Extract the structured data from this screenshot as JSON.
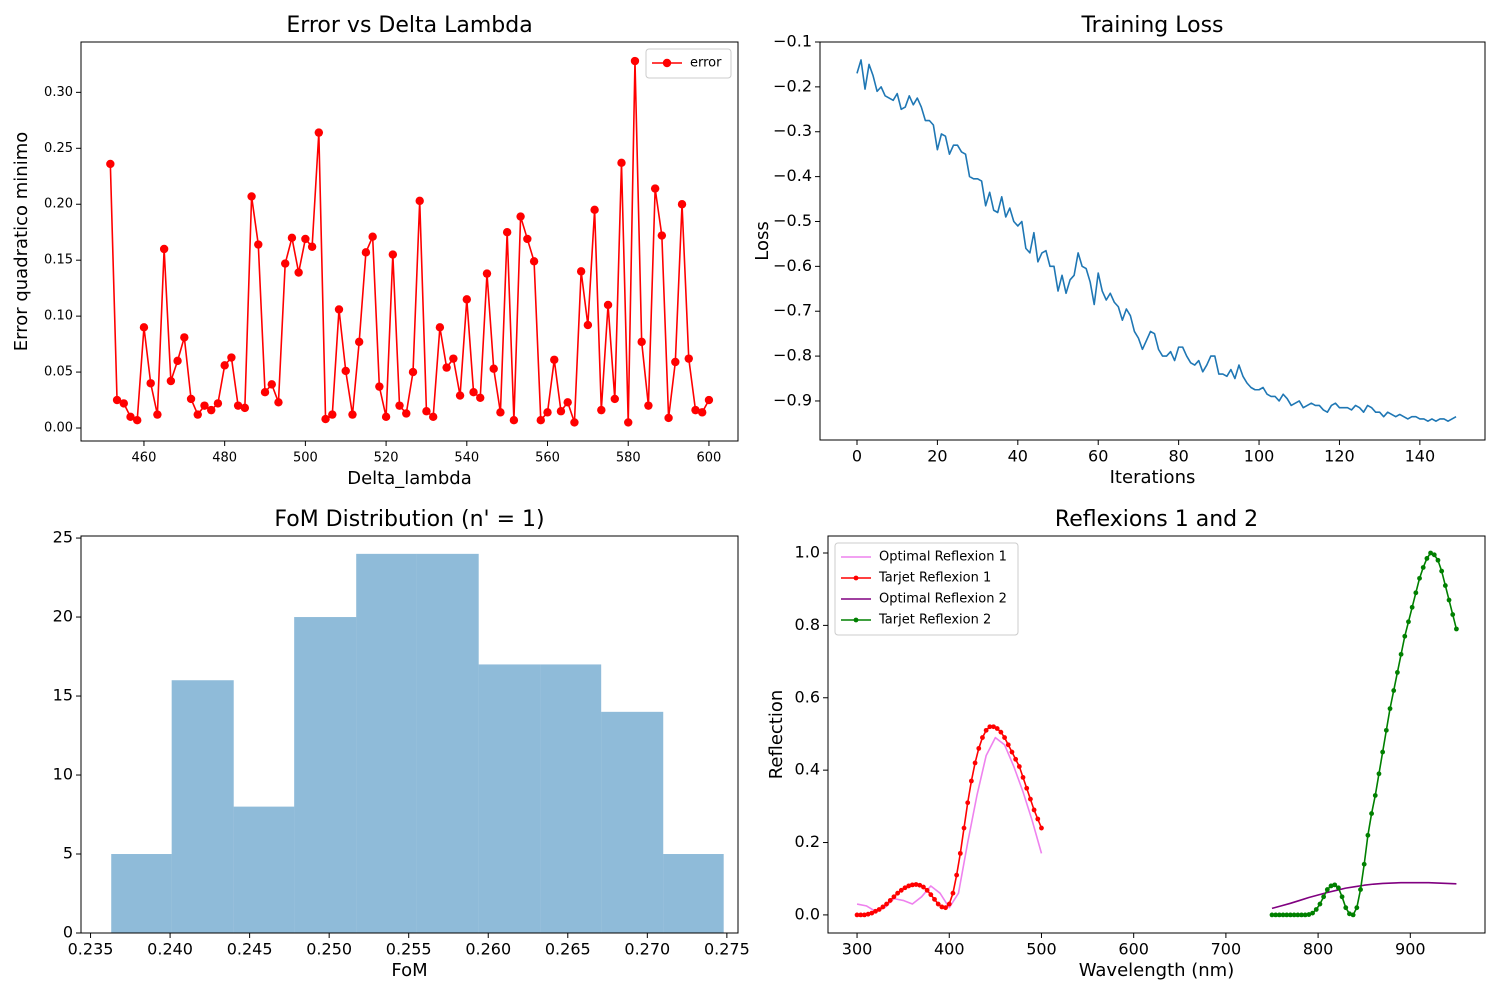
{
  "chart_data": [
    {
      "type": "line",
      "title": "Error vs Delta Lambda",
      "xlabel": "Delta_lambda",
      "ylabel": "Error quadratico minimo",
      "x": [
        451.67,
        453.33,
        455,
        456.67,
        458.33,
        460,
        461.67,
        463.33,
        465,
        466.67,
        468.33,
        470,
        471.67,
        473.33,
        475,
        476.67,
        478.33,
        480,
        481.67,
        483.33,
        485,
        486.67,
        488.33,
        490,
        491.67,
        493.33,
        495,
        496.67,
        498.33,
        500,
        501.67,
        503.33,
        505,
        506.67,
        508.33,
        510,
        511.67,
        513.33,
        515,
        516.67,
        518.33,
        520,
        521.67,
        523.33,
        525,
        526.67,
        528.33,
        530,
        531.67,
        533.33,
        535,
        536.67,
        538.33,
        540,
        541.67,
        543.33,
        545,
        546.67,
        548.33,
        550,
        551.67,
        553.33,
        555,
        556.67,
        558.33,
        560,
        561.67,
        563.33,
        565,
        566.67,
        568.33,
        570,
        571.67,
        573.33,
        575,
        576.67,
        578.33,
        580,
        581.67,
        583.33,
        585,
        586.67,
        588.33,
        590,
        591.67,
        593.33,
        595,
        596.67,
        598.33,
        600
      ],
      "series": [
        {
          "name": "error",
          "color": "#ff0000",
          "marker": true,
          "values": [
            0.236,
            0.025,
            0.022,
            0.01,
            0.007,
            0.09,
            0.04,
            0.012,
            0.16,
            0.042,
            0.06,
            0.081,
            0.026,
            0.012,
            0.02,
            0.016,
            0.022,
            0.056,
            0.063,
            0.02,
            0.018,
            0.207,
            0.164,
            0.032,
            0.039,
            0.023,
            0.147,
            0.17,
            0.139,
            0.169,
            0.162,
            0.264,
            0.008,
            0.012,
            0.106,
            0.051,
            0.012,
            0.077,
            0.157,
            0.171,
            0.037,
            0.01,
            0.155,
            0.02,
            0.013,
            0.05,
            0.203,
            0.015,
            0.01,
            0.09,
            0.054,
            0.062,
            0.029,
            0.115,
            0.032,
            0.027,
            0.138,
            0.053,
            0.014,
            0.175,
            0.007,
            0.189,
            0.169,
            0.149,
            0.007,
            0.014,
            0.061,
            0.015,
            0.023,
            0.005,
            0.14,
            0.092,
            0.195,
            0.016,
            0.11,
            0.026,
            0.237,
            0.005,
            0.328,
            0.077,
            0.02,
            0.214,
            0.172,
            0.009,
            0.059,
            0.2,
            0.062,
            0.016,
            0.014,
            0.025
          ]
        }
      ],
      "xlim": [
        444.4,
        607.2
      ],
      "ylim": [
        -0.0116,
        0.345
      ],
      "xticks": [
        460,
        480,
        500,
        520,
        540,
        560,
        580,
        600
      ],
      "yticks": [
        {
          "value": 0,
          "label": "0.00"
        },
        {
          "value": 0.05,
          "label": "0.05"
        },
        {
          "value": 0.1,
          "label": "0.10"
        },
        {
          "value": 0.15,
          "label": "0.15"
        },
        {
          "value": 0.2,
          "label": "0.20"
        },
        {
          "value": 0.25,
          "label": "0.25"
        },
        {
          "value": 0.3,
          "label": "0.30"
        }
      ],
      "grid": false,
      "legend": "upper right"
    },
    {
      "type": "line",
      "title": "Training Loss",
      "xlabel": "Iterations",
      "ylabel": "Loss",
      "color": "#1f77b4",
      "marker": false,
      "x": [
        0,
        1,
        2,
        3,
        4,
        5,
        6,
        7,
        8,
        9,
        10,
        11,
        12,
        13,
        14,
        15,
        16,
        17,
        18,
        19,
        20,
        21,
        22,
        23,
        24,
        25,
        26,
        27,
        28,
        29,
        30,
        31,
        32,
        33,
        34,
        35,
        36,
        37,
        38,
        39,
        40,
        41,
        42,
        43,
        44,
        45,
        46,
        47,
        48,
        49,
        50,
        51,
        52,
        53,
        54,
        55,
        56,
        57,
        58,
        59,
        60,
        61,
        62,
        63,
        64,
        65,
        66,
        67,
        68,
        69,
        70,
        71,
        72,
        73,
        74,
        75,
        76,
        77,
        78,
        79,
        80,
        81,
        82,
        83,
        84,
        85,
        86,
        87,
        88,
        89,
        90,
        91,
        92,
        93,
        94,
        95,
        96,
        97,
        98,
        99,
        100,
        101,
        102,
        103,
        104,
        105,
        106,
        107,
        108,
        109,
        110,
        111,
        112,
        113,
        114,
        115,
        116,
        117,
        118,
        119,
        120,
        121,
        122,
        123,
        124,
        125,
        126,
        127,
        128,
        129,
        130,
        131,
        132,
        133,
        134,
        135,
        136,
        137,
        138,
        139,
        140,
        141,
        142,
        143,
        144,
        145,
        146,
        147,
        148,
        149
      ],
      "values": [
        -0.17,
        -0.14,
        -0.205,
        -0.15,
        -0.175,
        -0.21,
        -0.2,
        -0.22,
        -0.225,
        -0.23,
        -0.215,
        -0.25,
        -0.245,
        -0.22,
        -0.24,
        -0.225,
        -0.245,
        -0.275,
        -0.275,
        -0.285,
        -0.34,
        -0.305,
        -0.31,
        -0.35,
        -0.33,
        -0.33,
        -0.345,
        -0.35,
        -0.4,
        -0.405,
        -0.405,
        -0.41,
        -0.465,
        -0.435,
        -0.475,
        -0.48,
        -0.445,
        -0.49,
        -0.47,
        -0.5,
        -0.51,
        -0.5,
        -0.56,
        -0.57,
        -0.525,
        -0.59,
        -0.57,
        -0.565,
        -0.6,
        -0.6,
        -0.655,
        -0.62,
        -0.66,
        -0.63,
        -0.62,
        -0.57,
        -0.6,
        -0.605,
        -0.635,
        -0.685,
        -0.615,
        -0.655,
        -0.675,
        -0.66,
        -0.68,
        -0.69,
        -0.72,
        -0.695,
        -0.71,
        -0.745,
        -0.76,
        -0.785,
        -0.765,
        -0.745,
        -0.75,
        -0.785,
        -0.8,
        -0.8,
        -0.79,
        -0.81,
        -0.78,
        -0.78,
        -0.8,
        -0.815,
        -0.82,
        -0.81,
        -0.835,
        -0.82,
        -0.8,
        -0.8,
        -0.84,
        -0.84,
        -0.845,
        -0.83,
        -0.85,
        -0.82,
        -0.845,
        -0.86,
        -0.87,
        -0.875,
        -0.875,
        -0.87,
        -0.885,
        -0.89,
        -0.89,
        -0.9,
        -0.885,
        -0.895,
        -0.91,
        -0.905,
        -0.9,
        -0.915,
        -0.91,
        -0.905,
        -0.91,
        -0.91,
        -0.92,
        -0.925,
        -0.91,
        -0.905,
        -0.915,
        -0.915,
        -0.915,
        -0.92,
        -0.91,
        -0.915,
        -0.925,
        -0.91,
        -0.915,
        -0.925,
        -0.925,
        -0.935,
        -0.925,
        -0.93,
        -0.935,
        -0.93,
        -0.935,
        -0.94,
        -0.935,
        -0.935,
        -0.94,
        -0.94,
        -0.945,
        -0.94,
        -0.945,
        -0.94,
        -0.94,
        -0.945,
        -0.94,
        -0.935
      ],
      "xlim": [
        -9.2,
        156.2
      ],
      "ylim": [
        -0.987,
        -0.1
      ],
      "xticks": [
        0,
        20,
        40,
        60,
        80,
        100,
        120,
        140
      ],
      "yticks": [
        {
          "value": -0.9,
          "label": "−0.9"
        },
        {
          "value": -0.8,
          "label": "−0.8"
        },
        {
          "value": -0.7,
          "label": "−0.7"
        },
        {
          "value": -0.6,
          "label": "−0.6"
        },
        {
          "value": -0.5,
          "label": "−0.5"
        },
        {
          "value": -0.4,
          "label": "−0.4"
        },
        {
          "value": -0.3,
          "label": "−0.3"
        },
        {
          "value": -0.2,
          "label": "−0.2"
        },
        {
          "value": -0.1,
          "label": "−0.1"
        }
      ],
      "grid": false
    },
    {
      "type": "histogram",
      "title": "FoM Distribution (n' = 1)",
      "xlabel": "FoM",
      "color": "#1f77b4",
      "alpha": 0.5,
      "bins": [
        0.2363,
        0.2401,
        0.244,
        0.2478,
        0.2517,
        0.2555,
        0.2594,
        0.2633,
        0.2671,
        0.271,
        0.2748
      ],
      "values": [
        5,
        16,
        8,
        20,
        24,
        24,
        17,
        17,
        14,
        5
      ],
      "xlim": [
        0.2344,
        0.2757
      ],
      "ylim": [
        0,
        25.13
      ],
      "xticks": [
        {
          "value": 0.235,
          "label": "0.235"
        },
        {
          "value": 0.24,
          "label": "0.240"
        },
        {
          "value": 0.245,
          "label": "0.245"
        },
        {
          "value": 0.25,
          "label": "0.250"
        },
        {
          "value": 0.255,
          "label": "0.255"
        },
        {
          "value": 0.26,
          "label": "0.260"
        },
        {
          "value": 0.265,
          "label": "0.265"
        },
        {
          "value": 0.27,
          "label": "0.270"
        },
        {
          "value": 0.275,
          "label": "0.275"
        }
      ],
      "yticks": [
        0,
        5,
        10,
        15,
        20,
        25
      ],
      "grid": false
    },
    {
      "type": "line",
      "title": "Reflexions 1 and 2",
      "xlabel": "Wavelength (nm)",
      "ylabel": "Reflection",
      "series": [
        {
          "name": "Optimal Reflexion 1",
          "color": "#ee82ee",
          "marker": false,
          "x": [
            300,
            310,
            320,
            330,
            340,
            350,
            360,
            370,
            380,
            390,
            400,
            410,
            420,
            430,
            440,
            450,
            460,
            470,
            480,
            490,
            500
          ],
          "values": [
            0.03,
            0.025,
            0.01,
            0.02,
            0.045,
            0.04,
            0.03,
            0.05,
            0.08,
            0.06,
            0.02,
            0.06,
            0.2,
            0.33,
            0.44,
            0.49,
            0.47,
            0.41,
            0.34,
            0.26,
            0.17
          ]
        },
        {
          "name": "Tarjet Reflexion 1",
          "color": "#ff0000",
          "marker": true,
          "x": [
            300,
            304,
            308,
            312,
            316,
            320,
            324,
            328,
            332,
            336,
            340,
            344,
            348,
            352,
            356,
            360,
            364,
            368,
            372,
            376,
            380,
            384,
            388,
            392,
            396,
            400,
            404,
            408,
            412,
            416,
            420,
            424,
            428,
            432,
            436,
            440,
            444,
            448,
            452,
            456,
            460,
            464,
            468,
            472,
            476,
            480,
            484,
            488,
            492,
            496,
            500
          ],
          "values": [
            0.0,
            0.0,
            0.0,
            0.002,
            0.005,
            0.01,
            0.015,
            0.022,
            0.03,
            0.04,
            0.05,
            0.06,
            0.068,
            0.075,
            0.08,
            0.083,
            0.084,
            0.082,
            0.077,
            0.068,
            0.056,
            0.043,
            0.03,
            0.022,
            0.02,
            0.03,
            0.06,
            0.11,
            0.17,
            0.24,
            0.31,
            0.37,
            0.42,
            0.46,
            0.49,
            0.51,
            0.52,
            0.52,
            0.515,
            0.505,
            0.49,
            0.47,
            0.45,
            0.43,
            0.41,
            0.38,
            0.35,
            0.32,
            0.29,
            0.265,
            0.24
          ]
        },
        {
          "name": "Optimal Reflexion 2",
          "color": "#800080",
          "marker": false,
          "x": [
            750,
            760,
            770,
            780,
            790,
            800,
            810,
            820,
            830,
            840,
            850,
            860,
            870,
            880,
            890,
            900,
            910,
            920,
            930,
            940,
            950
          ],
          "values": [
            0.018,
            0.025,
            0.032,
            0.04,
            0.048,
            0.055,
            0.062,
            0.068,
            0.074,
            0.078,
            0.082,
            0.085,
            0.087,
            0.088,
            0.089,
            0.089,
            0.089,
            0.089,
            0.088,
            0.087,
            0.086
          ]
        },
        {
          "name": "Tarjet Reflexion 2",
          "color": "#008000",
          "marker": true,
          "x": [
            750,
            754,
            758,
            762,
            766,
            770,
            774,
            778,
            782,
            786,
            790,
            794,
            798,
            802,
            806,
            810,
            814,
            818,
            822,
            826,
            830,
            834,
            838,
            842,
            846,
            850,
            854,
            858,
            862,
            866,
            870,
            874,
            878,
            882,
            886,
            890,
            894,
            898,
            902,
            906,
            910,
            914,
            918,
            922,
            926,
            930,
            934,
            938,
            942,
            946,
            950
          ],
          "values": [
            0,
            0,
            0,
            0,
            0,
            0,
            0,
            0,
            0,
            0,
            0.001,
            0.005,
            0.015,
            0.03,
            0.05,
            0.07,
            0.08,
            0.083,
            0.075,
            0.05,
            0.02,
            0.003,
            0.0,
            0.02,
            0.07,
            0.14,
            0.22,
            0.28,
            0.33,
            0.39,
            0.45,
            0.51,
            0.57,
            0.62,
            0.67,
            0.72,
            0.77,
            0.81,
            0.85,
            0.89,
            0.93,
            0.96,
            0.985,
            1.0,
            0.995,
            0.98,
            0.95,
            0.91,
            0.87,
            0.83,
            0.79
          ]
        }
      ],
      "xlim": [
        268.5,
        981
      ],
      "ylim": [
        -0.05,
        1.047
      ],
      "xticks": [
        300,
        400,
        500,
        600,
        700,
        800,
        900
      ],
      "yticks": [
        {
          "value": 0,
          "label": "0.0"
        },
        {
          "value": 0.2,
          "label": "0.2"
        },
        {
          "value": 0.4,
          "label": "0.4"
        },
        {
          "value": 0.6,
          "label": "0.6"
        },
        {
          "value": 0.8,
          "label": "0.8"
        },
        {
          "value": 1.0,
          "label": "1.0"
        }
      ],
      "grid": false,
      "legend": "upper left"
    }
  ]
}
